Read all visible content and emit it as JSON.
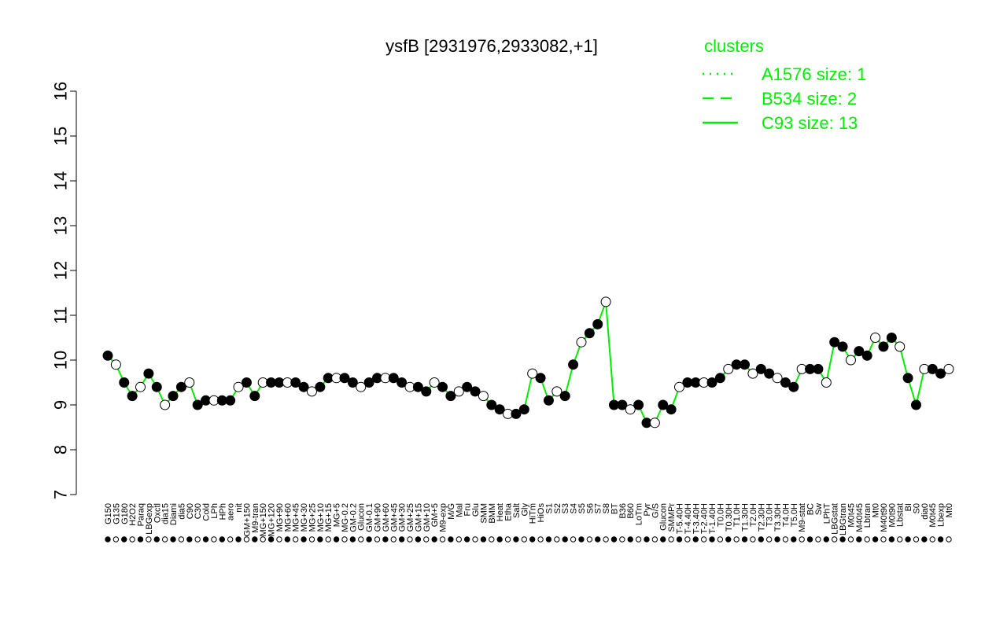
{
  "chart_data": {
    "type": "line",
    "title": "ysfB [2931976,2933082,+1]",
    "xlabel": "",
    "ylabel": "",
    "ylim": [
      7,
      16
    ],
    "yticks": [
      7,
      8,
      9,
      10,
      11,
      12,
      13,
      14,
      15,
      16
    ],
    "grid": false,
    "legend": {
      "title": "clusters",
      "placement": "top-right",
      "entries": [
        {
          "label": "A1576 size: 1",
          "style": "dotted"
        },
        {
          "label": "B534 size: 2",
          "style": "dashed"
        },
        {
          "label": "C93 size: 13",
          "style": "solid"
        }
      ]
    },
    "colors": {
      "line": "#00ee00",
      "point_fill_dark": "#000000",
      "point_fill_light": "#ffffff",
      "axis": "#000000"
    },
    "x_labels": [
      "G150",
      "G135",
      "G180",
      "H2O2",
      "Paraq",
      "LBGexp",
      "Oxctl",
      "dia15",
      "Diami",
      "dia5",
      "C90",
      "C30",
      "Cold",
      "LPh",
      "HPh",
      "aero",
      "nit",
      "GM+150",
      "M9-tran",
      "MG+150",
      "MG+120",
      "MG+90",
      "MG+60",
      "MG+45",
      "MG+30",
      "MG+25",
      "MG+10",
      "MG+15",
      "MG+5",
      "MG-0.2",
      "GM-0.2",
      "Glucon",
      "GM-0.1",
      "GM+90",
      "GM+60",
      "GM+45",
      "GM+30",
      "GM+25",
      "GM+15",
      "GM+10",
      "GM+5",
      "M9-exp",
      "M/G",
      "Mal",
      "Fru",
      "Glu",
      "SMM",
      "BMM",
      "Heat",
      "Etha",
      "Salt",
      "Gly",
      "HiTm",
      "HiOs",
      "S1",
      "S2",
      "S3",
      "S4",
      "S5",
      "S6",
      "S7",
      "S8",
      "BT",
      "B36",
      "B60",
      "LoTm",
      "Pyr",
      "G/S",
      "Glucon",
      "SMMPr",
      "T-5.40H",
      "T-4.40H",
      "T-3.40H",
      "T-2.40H",
      "T-1.40H",
      "T0.0H",
      "T0.30H",
      "T1.0H",
      "T1.30H",
      "T2.0H",
      "T2.30H",
      "T3.0H",
      "T3.30H",
      "T4.0H",
      "T5.0H",
      "M9-stat",
      "BC",
      "Sw",
      "LPhT",
      "LBGstat",
      "LBGtran",
      "M0t45",
      "M40t45",
      "Lbtran",
      "Mt0",
      "M40t90",
      "M0t90",
      "Lbstat",
      "BI",
      "S0",
      "dia0",
      "M0t45",
      "Lbexp",
      "Mt0"
    ],
    "series": [
      {
        "values": [
          10.1,
          9.9,
          9.5,
          9.2,
          9.4,
          9.7,
          9.4,
          9.0,
          9.2,
          9.4,
          9.5,
          9.0,
          9.1,
          9.1,
          9.1,
          9.1,
          9.4,
          9.5,
          9.2,
          9.5,
          9.5,
          9.5,
          9.5,
          9.5,
          9.4,
          9.3,
          9.4,
          9.6,
          9.6,
          9.6,
          9.5,
          9.4,
          9.5,
          9.6,
          9.6,
          9.6,
          9.5,
          9.4,
          9.4,
          9.3,
          9.5,
          9.4,
          9.2,
          9.3,
          9.4,
          9.3,
          9.2,
          9.0,
          8.9,
          8.8,
          8.8,
          8.9,
          9.7,
          9.6,
          9.1,
          9.3,
          9.2,
          9.9,
          10.4,
          10.6,
          10.8,
          11.3,
          9.0,
          9.0,
          8.9,
          9.0,
          8.6,
          8.6,
          9.0,
          8.9,
          9.4,
          9.5,
          9.5,
          9.5,
          9.5,
          9.6,
          9.8,
          9.9,
          9.9,
          9.7,
          9.8,
          9.7,
          9.6,
          9.5,
          9.4,
          9.8,
          9.8,
          9.8,
          9.5,
          10.4,
          10.3,
          10.0,
          10.2,
          10.1,
          10.5,
          10.3,
          10.5,
          10.3,
          9.6,
          9.0,
          9.8,
          9.8,
          9.7,
          9.8
        ]
      }
    ]
  }
}
